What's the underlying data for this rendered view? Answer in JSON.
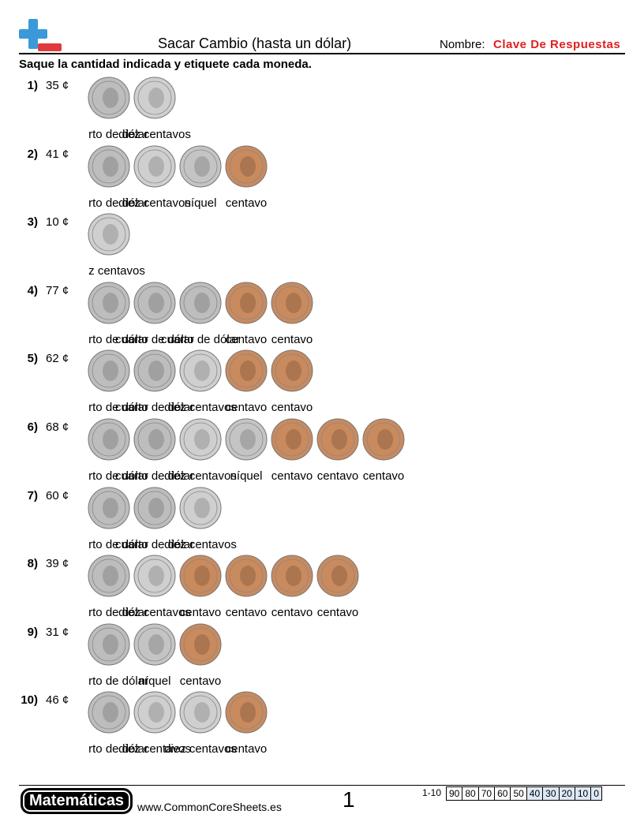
{
  "header": {
    "title": "Sacar Cambio (hasta un dólar)",
    "name_label": "Nombre:",
    "name_value": "Clave De Respuestas",
    "instructions": "Saque la cantidad indicada y etiquete cada moneda."
  },
  "problems": [
    {
      "number": "1)",
      "amount": "35 ¢",
      "coins": [
        {
          "label": "cuarto de dólar",
          "color": "#bdbdbd"
        },
        {
          "label": "diez centavos",
          "color": "#cfcfcf"
        }
      ]
    },
    {
      "number": "2)",
      "amount": "41 ¢",
      "coins": [
        {
          "label": "cuarto de dólar",
          "color": "#bdbdbd"
        },
        {
          "label": "diez centavos",
          "color": "#cfcfcf"
        },
        {
          "label": "níquel",
          "color": "#c4c4c4"
        },
        {
          "label": "centavo",
          "color": "#c98a5e"
        }
      ]
    },
    {
      "number": "3)",
      "amount": "10 ¢",
      "coins": [
        {
          "label": "diez centavos",
          "color": "#cfcfcf"
        }
      ]
    },
    {
      "number": "4)",
      "amount": "77 ¢",
      "coins": [
        {
          "label": "cuarto de dólar",
          "color": "#bdbdbd"
        },
        {
          "label": "cuarto de dólar",
          "color": "#bdbdbd"
        },
        {
          "label": "cuarto de dólar",
          "color": "#bdbdbd"
        },
        {
          "label": "centavo",
          "color": "#c98a5e"
        },
        {
          "label": "centavo",
          "color": "#c98a5e"
        }
      ]
    },
    {
      "number": "5)",
      "amount": "62 ¢",
      "coins": [
        {
          "label": "cuarto de dólar",
          "color": "#bdbdbd"
        },
        {
          "label": "cuarto de dólar",
          "color": "#bdbdbd"
        },
        {
          "label": "diez centavos",
          "color": "#cfcfcf"
        },
        {
          "label": "centavo",
          "color": "#c98a5e"
        },
        {
          "label": "centavo",
          "color": "#c98a5e"
        }
      ]
    },
    {
      "number": "6)",
      "amount": "68 ¢",
      "coins": [
        {
          "label": "cuarto de dólar",
          "color": "#bdbdbd"
        },
        {
          "label": "cuarto de dólar",
          "color": "#bdbdbd"
        },
        {
          "label": "diez centavos",
          "color": "#cfcfcf"
        },
        {
          "label": "níquel",
          "color": "#c4c4c4"
        },
        {
          "label": "centavo",
          "color": "#c98a5e"
        },
        {
          "label": "centavo",
          "color": "#c98a5e"
        },
        {
          "label": "centavo",
          "color": "#c98a5e"
        }
      ]
    },
    {
      "number": "7)",
      "amount": "60 ¢",
      "coins": [
        {
          "label": "cuarto de dólar",
          "color": "#bdbdbd"
        },
        {
          "label": "cuarto de dólar",
          "color": "#bdbdbd"
        },
        {
          "label": "diez centavos",
          "color": "#cfcfcf"
        }
      ]
    },
    {
      "number": "8)",
      "amount": "39 ¢",
      "coins": [
        {
          "label": "cuarto de dólar",
          "color": "#bdbdbd"
        },
        {
          "label": "diez centavos",
          "color": "#cfcfcf"
        },
        {
          "label": "centavo",
          "color": "#c98a5e"
        },
        {
          "label": "centavo",
          "color": "#c98a5e"
        },
        {
          "label": "centavo",
          "color": "#c98a5e"
        },
        {
          "label": "centavo",
          "color": "#c98a5e"
        }
      ]
    },
    {
      "number": "9)",
      "amount": "31 ¢",
      "coins": [
        {
          "label": "cuarto de dólar",
          "color": "#bdbdbd"
        },
        {
          "label": "níquel",
          "color": "#c4c4c4"
        },
        {
          "label": "centavo",
          "color": "#c98a5e"
        }
      ]
    },
    {
      "number": "10)",
      "amount": "46 ¢",
      "coins": [
        {
          "label": "cuarto de dólar",
          "color": "#bdbdbd"
        },
        {
          "label": "diez centavos",
          "color": "#cfcfcf"
        },
        {
          "label": "diez centavos",
          "color": "#cfcfcf"
        },
        {
          "label": "centavo",
          "color": "#c98a5e"
        }
      ]
    }
  ],
  "footer": {
    "brand": "Matemáticas",
    "url": "www.CommonCoreSheets.es",
    "page": "1",
    "score_range": "1-10",
    "scores": [
      {
        "text": "90",
        "color": "#ffffff"
      },
      {
        "text": "80",
        "color": "#ffffff"
      },
      {
        "text": "70",
        "color": "#ffffff"
      },
      {
        "text": "60",
        "color": "#ffffff"
      },
      {
        "text": "50",
        "color": "#ffffff"
      },
      {
        "text": "40",
        "color": "#dde8f6"
      },
      {
        "text": "30",
        "color": "#dde8f6"
      },
      {
        "text": "20",
        "color": "#dde8f6"
      },
      {
        "text": "10",
        "color": "#dde8f6"
      },
      {
        "text": "0",
        "color": "#dde8f6"
      }
    ]
  }
}
